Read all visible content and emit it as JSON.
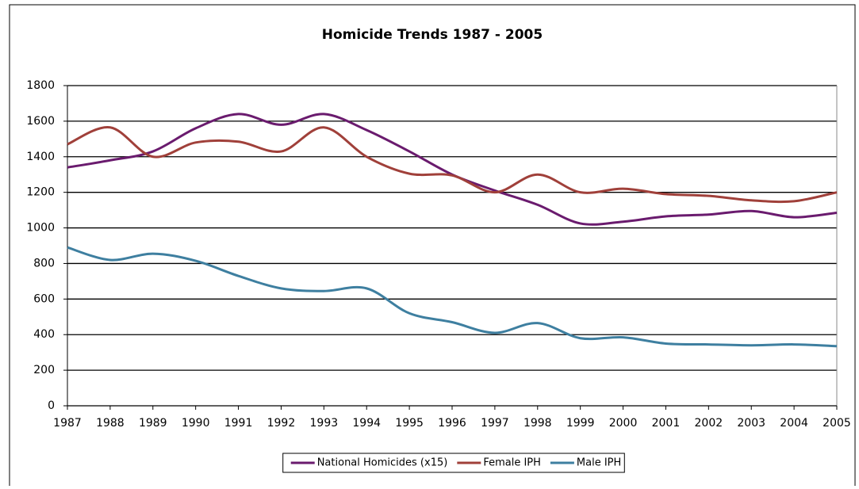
{
  "chart_data": {
    "type": "line",
    "title": "Homicide Trends 1987 - 2005",
    "categories": [
      "1987",
      "1988",
      "1989",
      "1990",
      "1991",
      "1992",
      "1993",
      "1994",
      "1995",
      "1996",
      "1997",
      "1998",
      "1999",
      "2000",
      "2001",
      "2002",
      "2003",
      "2004",
      "2005"
    ],
    "series": [
      {
        "name": "National Homicides (x15)",
        "color": "#6a1b6e",
        "values": [
          1340,
          1380,
          1430,
          1560,
          1640,
          1580,
          1640,
          1550,
          1430,
          1300,
          1210,
          1130,
          1025,
          1035,
          1065,
          1075,
          1095,
          1060,
          1085
        ]
      },
      {
        "name": "Female IPH",
        "color": "#a0403a",
        "values": [
          1470,
          1565,
          1400,
          1480,
          1485,
          1430,
          1565,
          1400,
          1305,
          1295,
          1200,
          1300,
          1200,
          1220,
          1190,
          1180,
          1155,
          1150,
          1200
        ]
      },
      {
        "name": "Male IPH",
        "color": "#3e7fa0",
        "values": [
          890,
          820,
          855,
          815,
          730,
          660,
          645,
          660,
          520,
          470,
          410,
          465,
          380,
          385,
          350,
          345,
          340,
          345,
          335
        ]
      }
    ],
    "ylim": [
      0,
      1800
    ],
    "yticks": [
      0,
      200,
      400,
      600,
      800,
      1000,
      1200,
      1400,
      1600,
      1800
    ],
    "grid": true,
    "legend": "bottom"
  }
}
